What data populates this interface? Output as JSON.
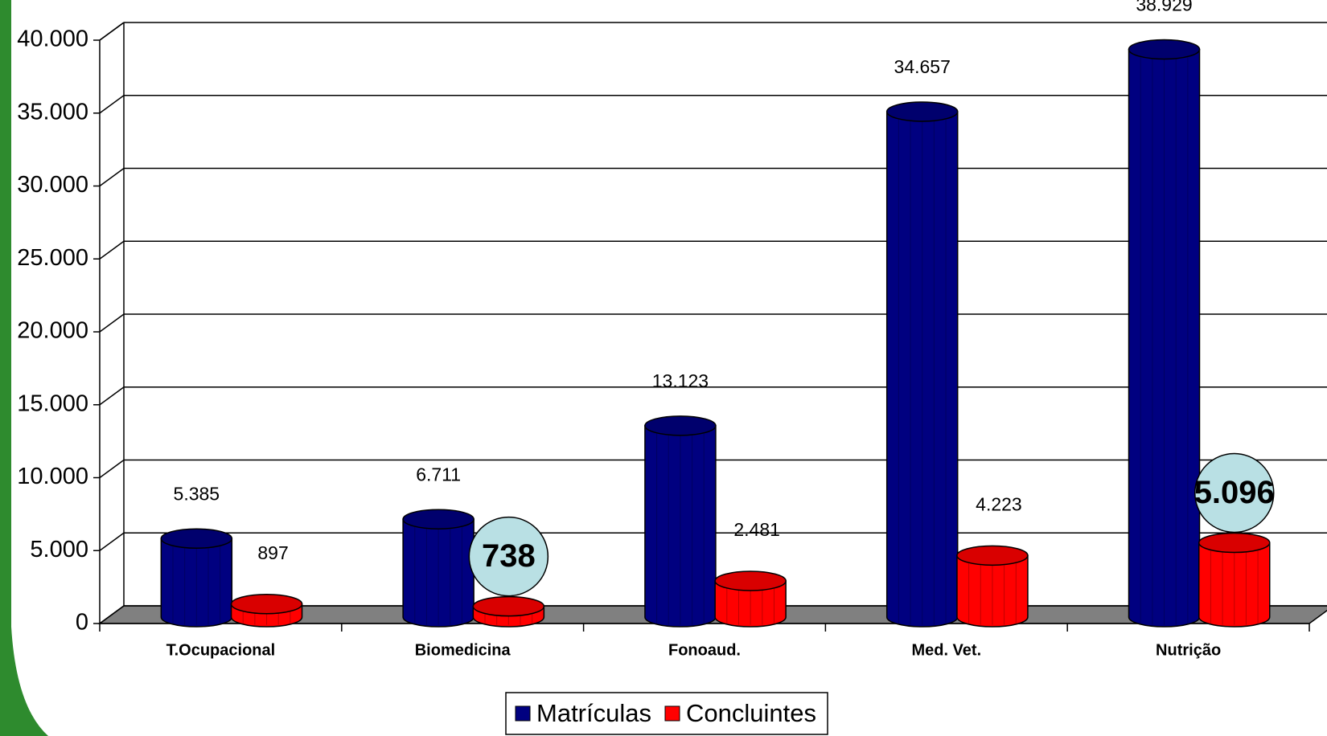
{
  "chart_data": {
    "type": "bar3d",
    "categories": [
      "T.Ocupacional",
      "Biomedicina",
      "Fonoaud.",
      "Med. Vet.",
      "Nutrição"
    ],
    "series": [
      {
        "name": "Matrículas",
        "color": "#000080",
        "values": [
          5385,
          6711,
          13123,
          34657,
          38929
        ],
        "value_labels": [
          "5.385",
          "6.711",
          "13.123",
          "34.657",
          "38.929"
        ]
      },
      {
        "name": "Concluintes",
        "color": "#ff0000",
        "values": [
          897,
          738,
          2481,
          4223,
          5096
        ],
        "value_labels": [
          "897",
          "738",
          "2.481",
          "4.223",
          "5.096"
        ],
        "highlighted": [
          1,
          4
        ]
      }
    ],
    "ylim": [
      0,
      40000
    ],
    "yticks": [
      0,
      {
        "value": 5000,
        "label": "5.000"
      },
      {
        "value": 10000,
        "label": "10.000"
      },
      {
        "value": 15000,
        "label": "15.000"
      },
      {
        "value": 20000,
        "label": "20.000"
      },
      {
        "value": 25000,
        "label": "25.000"
      },
      {
        "value": 30000,
        "label": "30.000"
      },
      {
        "value": 35000,
        "label": "35.000"
      },
      {
        "value": 40000,
        "label": "40.000"
      }
    ],
    "grid": true,
    "legend": "bottom"
  }
}
